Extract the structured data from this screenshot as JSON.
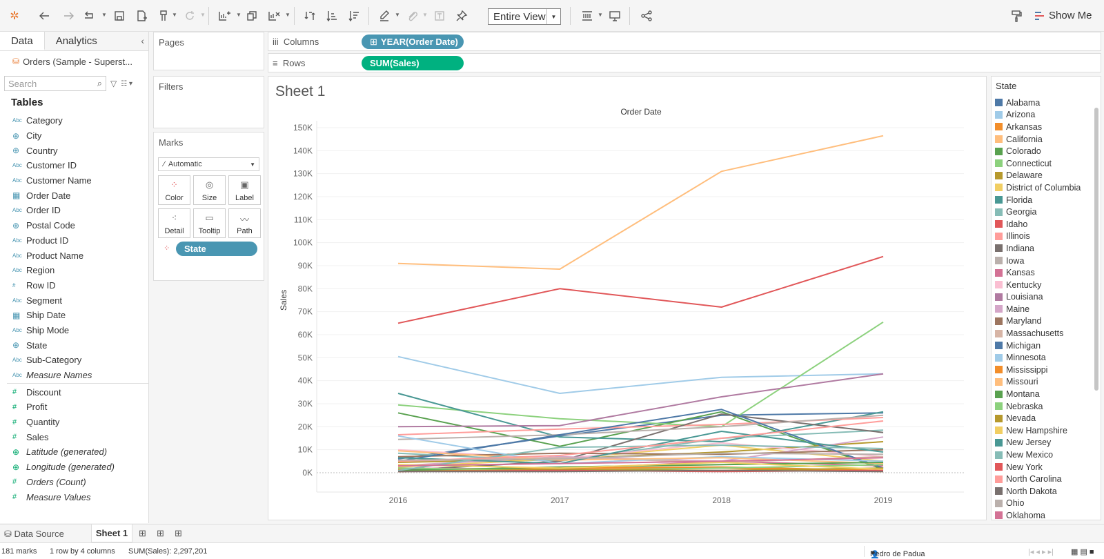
{
  "toolbar": {
    "fit_label": "Entire View",
    "show_me_label": "Show Me"
  },
  "left_panel": {
    "data_tab": "Data",
    "analytics_tab": "Analytics",
    "source": "Orders (Sample - Superst...",
    "search_placeholder": "Search",
    "tables_heading": "Tables",
    "dimensions": [
      {
        "type": "Abc",
        "name": "Category"
      },
      {
        "type": "geo",
        "name": "City"
      },
      {
        "type": "geo",
        "name": "Country"
      },
      {
        "type": "Abc",
        "name": "Customer ID"
      },
      {
        "type": "Abc",
        "name": "Customer Name"
      },
      {
        "type": "date",
        "name": "Order Date"
      },
      {
        "type": "Abc",
        "name": "Order ID"
      },
      {
        "type": "geo",
        "name": "Postal Code"
      },
      {
        "type": "Abc",
        "name": "Product ID"
      },
      {
        "type": "Abc",
        "name": "Product Name"
      },
      {
        "type": "Abc",
        "name": "Region"
      },
      {
        "type": "num",
        "name": "Row ID"
      },
      {
        "type": "Abc",
        "name": "Segment"
      },
      {
        "type": "date",
        "name": "Ship Date"
      },
      {
        "type": "Abc",
        "name": "Ship Mode"
      },
      {
        "type": "geo",
        "name": "State"
      },
      {
        "type": "Abc",
        "name": "Sub-Category"
      },
      {
        "type": "Abc",
        "name": "Measure Names",
        "italic": true
      }
    ],
    "measures": [
      {
        "type": "num",
        "name": "Discount"
      },
      {
        "type": "num",
        "name": "Profit"
      },
      {
        "type": "num",
        "name": "Quantity"
      },
      {
        "type": "num",
        "name": "Sales"
      },
      {
        "type": "geo",
        "name": "Latitude (generated)",
        "italic": true
      },
      {
        "type": "geo",
        "name": "Longitude (generated)",
        "italic": true
      },
      {
        "type": "num",
        "name": "Orders (Count)",
        "italic": true
      },
      {
        "type": "num",
        "name": "Measure Values",
        "italic": true
      }
    ]
  },
  "cards": {
    "pages": "Pages",
    "filters": "Filters",
    "marks": "Marks",
    "mark_type": "Automatic",
    "buttons": [
      "Color",
      "Size",
      "Label",
      "Detail",
      "Tooltip",
      "Path"
    ],
    "state_pill": "State"
  },
  "shelves": {
    "columns_label": "Columns",
    "columns_pill": "YEAR(Order Date)",
    "rows_label": "Rows",
    "rows_pill": "SUM(Sales)"
  },
  "sheet": {
    "title": "Sheet 1"
  },
  "chart_data": {
    "type": "line",
    "title": "Order Date",
    "xlabel": "",
    "ylabel": "Sales",
    "x": [
      "2016",
      "2017",
      "2018",
      "2019"
    ],
    "ylim": [
      0,
      150000
    ],
    "y_ticks": [
      "0K",
      "10K",
      "20K",
      "30K",
      "40K",
      "50K",
      "60K",
      "70K",
      "80K",
      "90K",
      "100K",
      "110K",
      "120K",
      "130K",
      "140K",
      "150K"
    ],
    "series": [
      {
        "color": "#4e79a7",
        "values": [
          6000,
          16000,
          25000,
          26000
        ]
      },
      {
        "color": "#a0cbe8",
        "values": [
          50500,
          34500,
          41500,
          43000
        ]
      },
      {
        "color": "#f28e2b",
        "values": [
          1500,
          2000,
          2000,
          500
        ]
      },
      {
        "color": "#ffbe7d",
        "values": [
          91000,
          88500,
          131000,
          146500
        ]
      },
      {
        "color": "#59a14f",
        "values": [
          26000,
          11500,
          26500,
          1500
        ]
      },
      {
        "color": "#8cd17d",
        "values": [
          29500,
          23500,
          20000,
          65500
        ]
      },
      {
        "color": "#b6992d",
        "values": [
          4500,
          6000,
          9000,
          13500
        ]
      },
      {
        "color": "#f1ce63",
        "values": [
          2500,
          6000,
          12000,
          5000
        ]
      },
      {
        "color": "#499894",
        "values": [
          34500,
          15500,
          13500,
          26500
        ]
      },
      {
        "color": "#86bcb6",
        "values": [
          8500,
          5000,
          15000,
          18500
        ]
      },
      {
        "color": "#e15759",
        "values": [
          65000,
          80000,
          72000,
          94000
        ]
      },
      {
        "color": "#ff9d9a",
        "values": [
          16500,
          19000,
          21000,
          24000
        ]
      },
      {
        "color": "#79706e",
        "values": [
          1000,
          5000,
          25500,
          17500
        ]
      },
      {
        "color": "#bab0ac",
        "values": [
          14500,
          16500,
          20000,
          25000
        ]
      },
      {
        "color": "#d37295",
        "values": [
          2000,
          1500,
          5000,
          3000
        ]
      },
      {
        "color": "#fabfd2",
        "values": [
          10000,
          6000,
          13000,
          7000
        ]
      },
      {
        "color": "#b07aa1",
        "values": [
          20000,
          20500,
          33000,
          43000
        ]
      },
      {
        "color": "#d4a6c8",
        "values": [
          3000,
          7000,
          5000,
          15500
        ]
      },
      {
        "color": "#9d7660",
        "values": [
          7000,
          8500,
          8000,
          10000
        ]
      },
      {
        "color": "#d7b5a6",
        "values": [
          5000,
          6500,
          4500,
          7000
        ]
      },
      {
        "color": "#4e79a7",
        "values": [
          5000,
          16500,
          27500,
          2000
        ]
      },
      {
        "color": "#a0cbe8",
        "values": [
          16000,
          4000,
          7000,
          5000
        ]
      },
      {
        "color": "#f28e2b",
        "values": [
          500,
          2000,
          2500,
          1000
        ]
      },
      {
        "color": "#ffbe7d",
        "values": [
          9500,
          5500,
          6500,
          4000
        ]
      },
      {
        "color": "#59a14f",
        "values": [
          1000,
          2500,
          3500,
          4500
        ]
      },
      {
        "color": "#8cd17d",
        "values": [
          2000,
          1000,
          2000,
          3500
        ]
      },
      {
        "color": "#b6992d",
        "values": [
          500,
          1500,
          1000,
          2000
        ]
      },
      {
        "color": "#f1ce63",
        "values": [
          3500,
          2000,
          4500,
          1500
        ]
      },
      {
        "color": "#499894",
        "values": [
          6500,
          4000,
          18000,
          9000
        ]
      },
      {
        "color": "#86bcb6",
        "values": [
          1000,
          11000,
          12000,
          10500
        ]
      },
      {
        "color": "#e15759",
        "values": [
          500,
          1000,
          500,
          1000
        ]
      },
      {
        "color": "#ff9d9a",
        "values": [
          5000,
          7500,
          15000,
          22500
        ]
      },
      {
        "color": "#79706e",
        "values": [
          500,
          500,
          1000,
          500
        ]
      },
      {
        "color": "#bab0ac",
        "values": [
          5500,
          6000,
          8500,
          8000
        ]
      },
      {
        "color": "#d37295",
        "values": [
          3000,
          4000,
          5000,
          6500
        ]
      }
    ]
  },
  "legend": {
    "title": "State",
    "items": [
      {
        "name": "Alabama",
        "color": "#4e79a7"
      },
      {
        "name": "Arizona",
        "color": "#a0cbe8"
      },
      {
        "name": "Arkansas",
        "color": "#f28e2b"
      },
      {
        "name": "California",
        "color": "#ffbe7d"
      },
      {
        "name": "Colorado",
        "color": "#59a14f"
      },
      {
        "name": "Connecticut",
        "color": "#8cd17d"
      },
      {
        "name": "Delaware",
        "color": "#b6992d"
      },
      {
        "name": "District of Columbia",
        "color": "#f1ce63"
      },
      {
        "name": "Florida",
        "color": "#499894"
      },
      {
        "name": "Georgia",
        "color": "#86bcb6"
      },
      {
        "name": "Idaho",
        "color": "#e15759"
      },
      {
        "name": "Illinois",
        "color": "#ff9d9a"
      },
      {
        "name": "Indiana",
        "color": "#79706e"
      },
      {
        "name": "Iowa",
        "color": "#bab0ac"
      },
      {
        "name": "Kansas",
        "color": "#d37295"
      },
      {
        "name": "Kentucky",
        "color": "#fabfd2"
      },
      {
        "name": "Louisiana",
        "color": "#b07aa1"
      },
      {
        "name": "Maine",
        "color": "#d4a6c8"
      },
      {
        "name": "Maryland",
        "color": "#9d7660"
      },
      {
        "name": "Massachusetts",
        "color": "#d7b5a6"
      },
      {
        "name": "Michigan",
        "color": "#4e79a7"
      },
      {
        "name": "Minnesota",
        "color": "#a0cbe8"
      },
      {
        "name": "Mississippi",
        "color": "#f28e2b"
      },
      {
        "name": "Missouri",
        "color": "#ffbe7d"
      },
      {
        "name": "Montana",
        "color": "#59a14f"
      },
      {
        "name": "Nebraska",
        "color": "#8cd17d"
      },
      {
        "name": "Nevada",
        "color": "#b6992d"
      },
      {
        "name": "New Hampshire",
        "color": "#f1ce63"
      },
      {
        "name": "New Jersey",
        "color": "#499894"
      },
      {
        "name": "New Mexico",
        "color": "#86bcb6"
      },
      {
        "name": "New York",
        "color": "#e15759"
      },
      {
        "name": "North Carolina",
        "color": "#ff9d9a"
      },
      {
        "name": "North Dakota",
        "color": "#79706e"
      },
      {
        "name": "Ohio",
        "color": "#bab0ac"
      },
      {
        "name": "Oklahoma",
        "color": "#d37295"
      }
    ]
  },
  "bottom": {
    "data_source": "Data Source",
    "sheet_tab": "Sheet 1"
  },
  "status": {
    "marks": "181 marks",
    "dims": "1 row by 4 columns",
    "sum": "SUM(Sales): 2,297,201",
    "user": "Pedro de Padua"
  }
}
